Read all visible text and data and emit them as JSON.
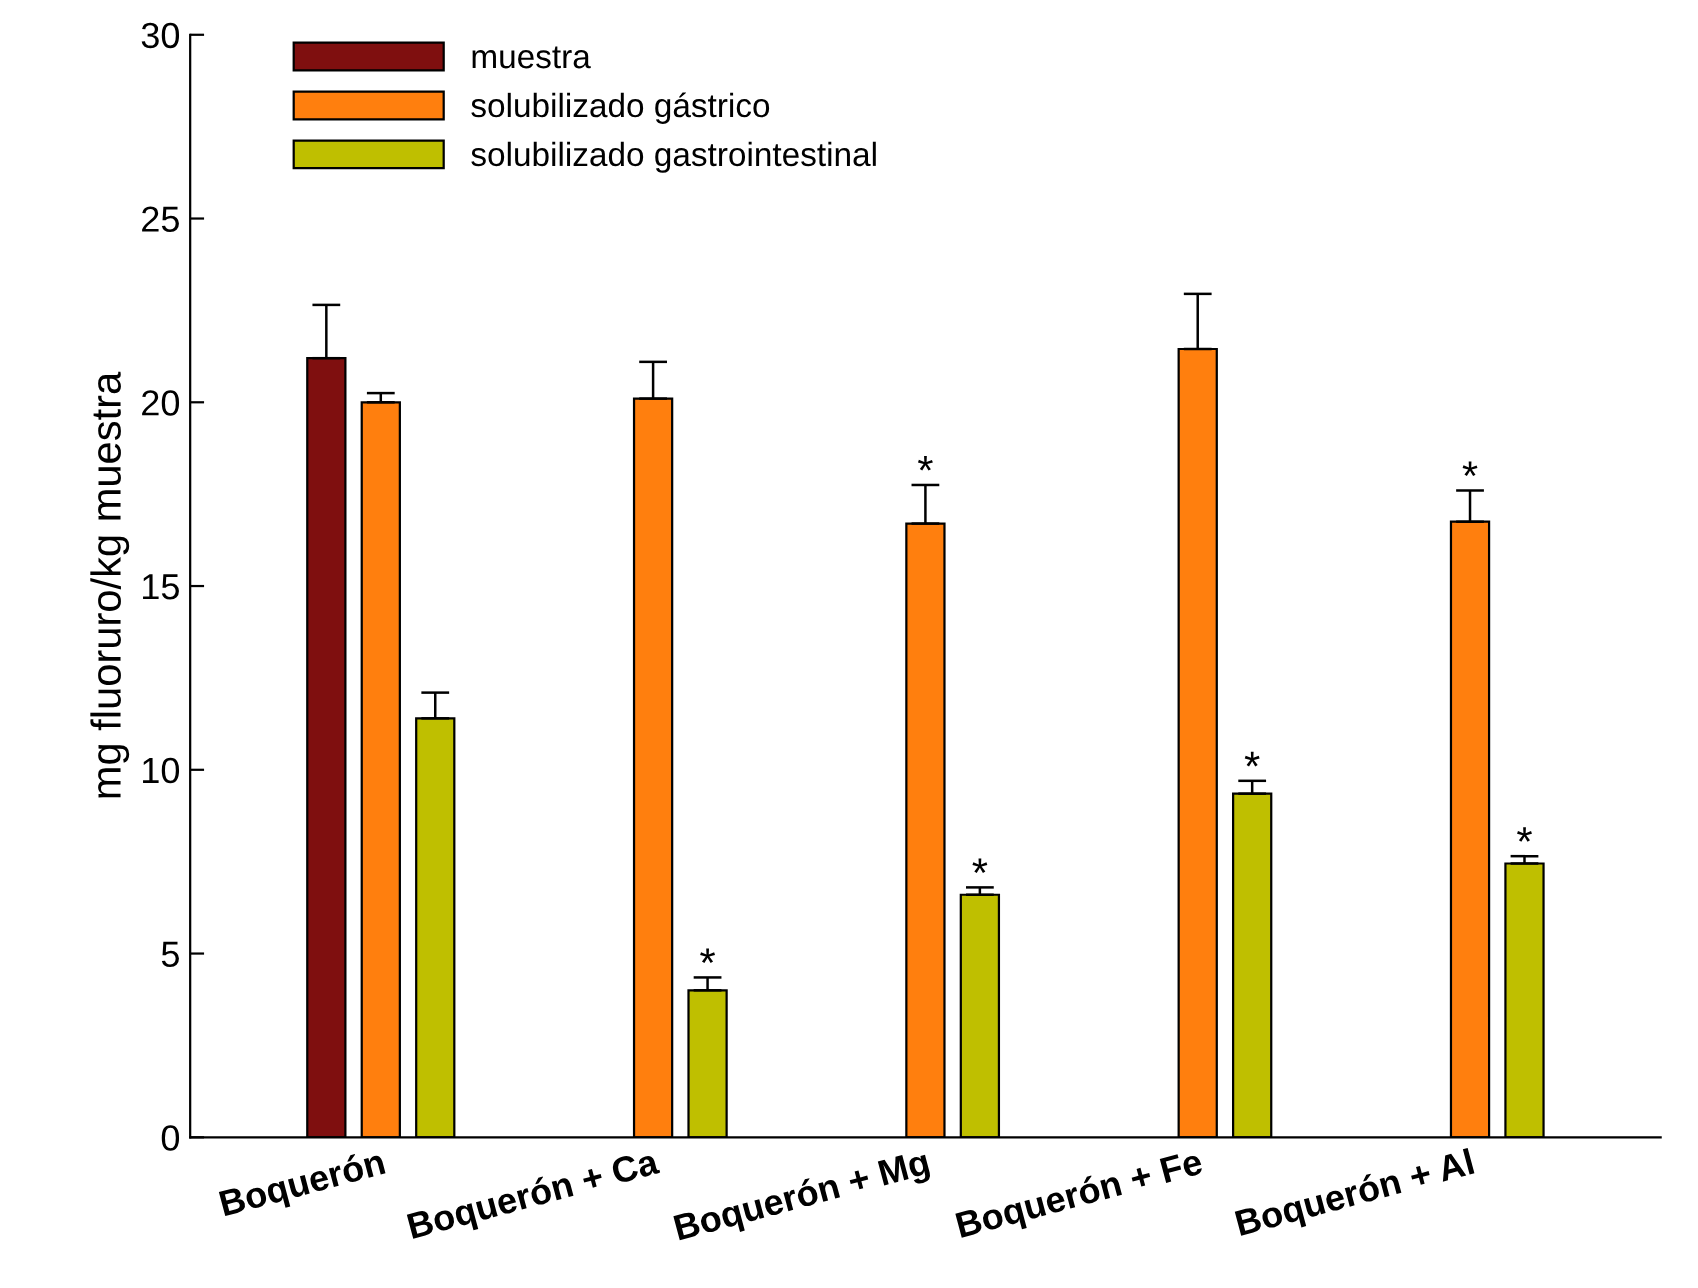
{
  "chart_data": {
    "type": "bar",
    "ylabel": "mg fluoruro/kg muestra",
    "categories": [
      "Boquerón",
      "Boquerón + Ca",
      "Boquerón + Mg",
      "Boquerón + Fe",
      "Boquerón + Al"
    ],
    "series": [
      {
        "name": "muestra",
        "color": "#7f0f0f",
        "values": [
          21.2,
          null,
          null,
          null,
          null
        ],
        "errors": [
          [
            21.2,
            22.65
          ],
          null,
          null,
          null,
          null
        ]
      },
      {
        "name": "solubilizado gástrico",
        "color": "#ff7f0e",
        "values": [
          20.0,
          20.1,
          16.7,
          21.45,
          16.75
        ],
        "errors": [
          [
            20.0,
            20.25
          ],
          [
            20.1,
            21.1
          ],
          [
            16.7,
            17.75
          ],
          [
            21.45,
            22.95
          ],
          [
            16.75,
            17.6
          ]
        ],
        "value_labels": [
          null,
          null,
          "*",
          null,
          "*"
        ]
      },
      {
        "name": "solubilizado gastrointestinal",
        "color": "#bfbf00",
        "values": [
          11.4,
          4.0,
          6.6,
          9.35,
          7.45
        ],
        "errors": [
          [
            11.4,
            12.1
          ],
          [
            4.0,
            4.35
          ],
          [
            6.6,
            6.8
          ],
          [
            9.35,
            9.7
          ],
          [
            7.45,
            7.65
          ]
        ],
        "value_labels": [
          null,
          "*",
          "*",
          "*",
          "*"
        ]
      }
    ],
    "ylim": [
      0,
      30
    ],
    "yticks": [
      0,
      5,
      10,
      15,
      20,
      25,
      30
    ],
    "grid": false,
    "legend": "top left"
  }
}
